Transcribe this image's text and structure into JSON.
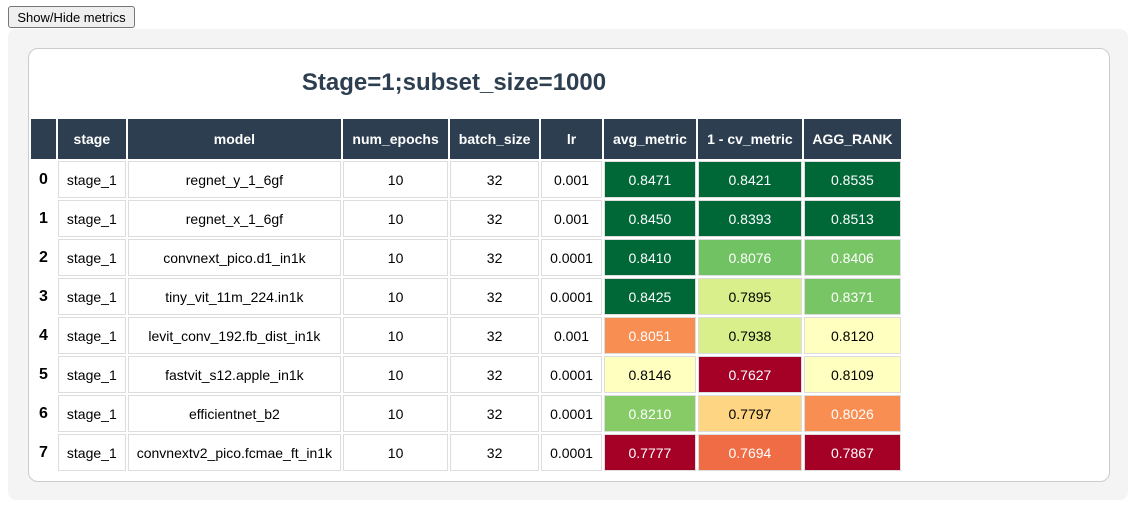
{
  "button": {
    "label": "Show/Hide metrics"
  },
  "title": "Stage=1;subset_size=1000",
  "table": {
    "columns": [
      "stage",
      "model",
      "num_epochs",
      "batch_size",
      "lr",
      "avg_metric",
      "1 - cv_metric",
      "AGG_RANK"
    ],
    "index": [
      "0",
      "1",
      "2",
      "3",
      "4",
      "5",
      "6",
      "7"
    ],
    "rows": [
      [
        "stage_1",
        "regnet_y_1_6gf",
        "10",
        "32",
        "0.001",
        "0.8471",
        "0.8421",
        "0.8535"
      ],
      [
        "stage_1",
        "regnet_x_1_6gf",
        "10",
        "32",
        "0.001",
        "0.8450",
        "0.8393",
        "0.8513"
      ],
      [
        "stage_1",
        "convnext_pico.d1_in1k",
        "10",
        "32",
        "0.0001",
        "0.8410",
        "0.8076",
        "0.8406"
      ],
      [
        "stage_1",
        "tiny_vit_11m_224.in1k",
        "10",
        "32",
        "0.0001",
        "0.8425",
        "0.7895",
        "0.8371"
      ],
      [
        "stage_1",
        "levit_conv_192.fb_dist_in1k",
        "10",
        "32",
        "0.001",
        "0.8051",
        "0.7938",
        "0.8120"
      ],
      [
        "stage_1",
        "fastvit_s12.apple_in1k",
        "10",
        "32",
        "0.0001",
        "0.8146",
        "0.7627",
        "0.8109"
      ],
      [
        "stage_1",
        "efficientnet_b2",
        "10",
        "32",
        "0.0001",
        "0.8210",
        "0.7797",
        "0.8026"
      ],
      [
        "stage_1",
        "convnextv2_pico.fcmae_ft_in1k",
        "10",
        "32",
        "0.0001",
        "0.7777",
        "0.7694",
        "0.7867"
      ]
    ],
    "cell_colors": [
      [
        null,
        null,
        null,
        null,
        null,
        "#006837",
        "#006837",
        "#006837"
      ],
      [
        null,
        null,
        null,
        null,
        null,
        "#006837",
        "#006837",
        "#006837"
      ],
      [
        null,
        null,
        null,
        null,
        null,
        "#006837",
        "#70c262",
        "#78c565"
      ],
      [
        null,
        null,
        null,
        null,
        null,
        "#006837",
        "#d9ef8b",
        "#78c565"
      ],
      [
        null,
        null,
        null,
        null,
        null,
        "#f88e52",
        "#d9ef8b",
        "#ffffbf"
      ],
      [
        null,
        null,
        null,
        null,
        null,
        "#ffffbf",
        "#a50026",
        "#ffffbf"
      ],
      [
        null,
        null,
        null,
        null,
        null,
        "#86cb66",
        "#fed582",
        "#f88e52"
      ],
      [
        null,
        null,
        null,
        null,
        null,
        "#a50026",
        "#f06c44",
        "#a50026"
      ]
    ]
  }
}
